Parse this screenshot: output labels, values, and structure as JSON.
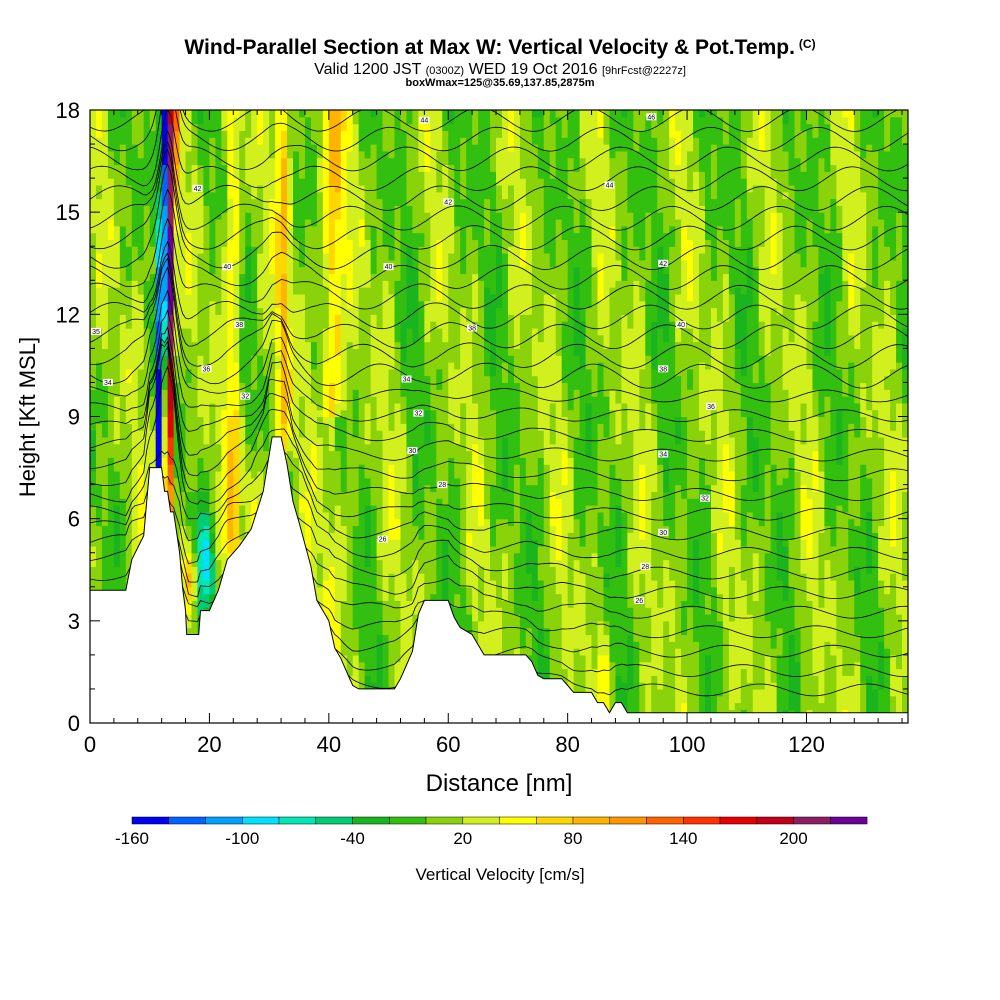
{
  "header": {
    "title": "Wind-Parallel Section at Max W: Vertical Velocity & Pot.Temp.",
    "title_tag": "(C)",
    "valid_prefix": "Valid 1200 JST",
    "utc_time": "(0300Z)",
    "valid_date": "WED 19 Oct 2016",
    "forecast_info": "[9hrFcst@2227z]",
    "box_info": "boxWmax=125@35.69,137.85,2875m"
  },
  "chart_data": {
    "type": "heatmap",
    "title": "Wind-Parallel Section at Max W: Vertical Velocity & Pot.Temp.",
    "xlabel": "Distance [nm]",
    "ylabel": "Height [Kft MSL]",
    "xlim": [
      0,
      137
    ],
    "ylim": [
      0,
      18
    ],
    "x_ticks": [
      0,
      20,
      40,
      60,
      80,
      100,
      120
    ],
    "y_ticks": [
      0,
      3,
      6,
      9,
      12,
      15,
      18
    ],
    "colorbar": {
      "label": "Vertical Velocity [cm/s]",
      "ticks": [
        -160,
        -100,
        -40,
        20,
        80,
        140,
        200
      ],
      "bin_edges": [
        -160,
        -140,
        -120,
        -100,
        -80,
        -60,
        -40,
        -20,
        0,
        20,
        40,
        60,
        80,
        100,
        120,
        140,
        160,
        180,
        200,
        220,
        240
      ],
      "colors": [
        "#0000f0",
        "#0064ff",
        "#00a0ff",
        "#00e0ff",
        "#00e6b4",
        "#00cc78",
        "#1ab41e",
        "#32bf10",
        "#8ad20a",
        "#d2f01e",
        "#ffff00",
        "#ffd700",
        "#ffb400",
        "#ff9600",
        "#ff6400",
        "#ff3200",
        "#e60000",
        "#c00018",
        "#8c1e64",
        "#6a0096"
      ]
    },
    "terrain_kft": [
      [
        0,
        3.9
      ],
      [
        6,
        3.9
      ],
      [
        7,
        4.8
      ],
      [
        9,
        5.5
      ],
      [
        10,
        7.5
      ],
      [
        12,
        7.5
      ],
      [
        12.5,
        6.8
      ],
      [
        13,
        6.8
      ],
      [
        13.5,
        6.2
      ],
      [
        14,
        6.2
      ],
      [
        15,
        5.0
      ],
      [
        15.5,
        4.0
      ],
      [
        16,
        3.3
      ],
      [
        16.2,
        2.6
      ],
      [
        18.2,
        2.6
      ],
      [
        18.5,
        3.3
      ],
      [
        20,
        3.3
      ],
      [
        21.5,
        3.9
      ],
      [
        23,
        4.8
      ],
      [
        25,
        5.2
      ],
      [
        27,
        5.7
      ],
      [
        29,
        6.8
      ],
      [
        30.5,
        8.4
      ],
      [
        32,
        8.4
      ],
      [
        33,
        7.6
      ],
      [
        34,
        6.5
      ],
      [
        35,
        5.9
      ],
      [
        37,
        4.6
      ],
      [
        38,
        3.6
      ],
      [
        40,
        3.0
      ],
      [
        41,
        2.2
      ],
      [
        42,
        1.9
      ],
      [
        43,
        1.5
      ],
      [
        44,
        1.1
      ],
      [
        45,
        1.0
      ],
      [
        51,
        1.0
      ],
      [
        52,
        1.3
      ],
      [
        54,
        2.1
      ],
      [
        55,
        3.2
      ],
      [
        56,
        3.6
      ],
      [
        60,
        3.6
      ],
      [
        61,
        3.1
      ],
      [
        62,
        2.8
      ],
      [
        64,
        2.6
      ],
      [
        65,
        2.3
      ],
      [
        66,
        2.0
      ],
      [
        73,
        2.0
      ],
      [
        74,
        1.8
      ],
      [
        75,
        1.4
      ],
      [
        76,
        1.3
      ],
      [
        79,
        1.3
      ],
      [
        80,
        1.1
      ],
      [
        81,
        0.9
      ],
      [
        84,
        0.9
      ],
      [
        85,
        0.6
      ],
      [
        86,
        0.6
      ],
      [
        87,
        0.3
      ],
      [
        88,
        0.6
      ],
      [
        89,
        0.6
      ],
      [
        90,
        0.3
      ],
      [
        137,
        0.3
      ]
    ],
    "contour_labels": [
      {
        "x": 1,
        "y": 11.5,
        "text": "35"
      },
      {
        "x": 3,
        "y": 10.0,
        "text": "34"
      },
      {
        "x": 18,
        "y": 15.7,
        "text": "42"
      },
      {
        "x": 23,
        "y": 13.4,
        "text": "40"
      },
      {
        "x": 25,
        "y": 11.7,
        "text": "38"
      },
      {
        "x": 19.5,
        "y": 10.4,
        "text": "36"
      },
      {
        "x": 26,
        "y": 9.6,
        "text": "32"
      },
      {
        "x": 56,
        "y": 17.7,
        "text": "44"
      },
      {
        "x": 60,
        "y": 15.3,
        "text": "42"
      },
      {
        "x": 50,
        "y": 13.4,
        "text": "40"
      },
      {
        "x": 64,
        "y": 11.6,
        "text": "38"
      },
      {
        "x": 53,
        "y": 10.1,
        "text": "34"
      },
      {
        "x": 55,
        "y": 9.1,
        "text": "32"
      },
      {
        "x": 54,
        "y": 8.0,
        "text": "30"
      },
      {
        "x": 59,
        "y": 7.0,
        "text": "28"
      },
      {
        "x": 49,
        "y": 5.4,
        "text": "26"
      },
      {
        "x": 94,
        "y": 17.8,
        "text": "46"
      },
      {
        "x": 87,
        "y": 15.8,
        "text": "44"
      },
      {
        "x": 96,
        "y": 13.5,
        "text": "42"
      },
      {
        "x": 99,
        "y": 11.7,
        "text": "40"
      },
      {
        "x": 96,
        "y": 10.4,
        "text": "38"
      },
      {
        "x": 104,
        "y": 9.3,
        "text": "36"
      },
      {
        "x": 96,
        "y": 7.9,
        "text": "34"
      },
      {
        "x": 103,
        "y": 6.6,
        "text": "32"
      },
      {
        "x": 96,
        "y": 5.6,
        "text": "30"
      },
      {
        "x": 93,
        "y": 4.6,
        "text": "28"
      },
      {
        "x": 92,
        "y": 3.6,
        "text": "26"
      }
    ]
  }
}
